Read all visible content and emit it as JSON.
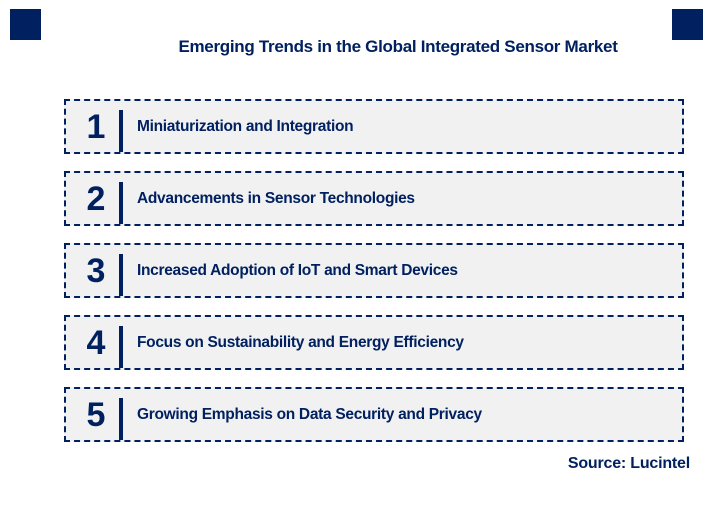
{
  "title": "Emerging Trends in the Global Integrated Sensor Market",
  "trends": [
    {
      "number": "1",
      "label": "Miniaturization and Integration"
    },
    {
      "number": "2",
      "label": "Advancements in Sensor Technologies"
    },
    {
      "number": "3",
      "label": "Increased Adoption of IoT and Smart Devices"
    },
    {
      "number": "4",
      "label": "Focus on Sustainability and Energy Efficiency"
    },
    {
      "number": "5",
      "label": "Growing Emphasis on Data Security and Privacy"
    }
  ],
  "source": "Source: Lucintel",
  "colors": {
    "navy": "#002060",
    "box_fill": "#F1F1F1",
    "background": "#FFFFFF"
  }
}
